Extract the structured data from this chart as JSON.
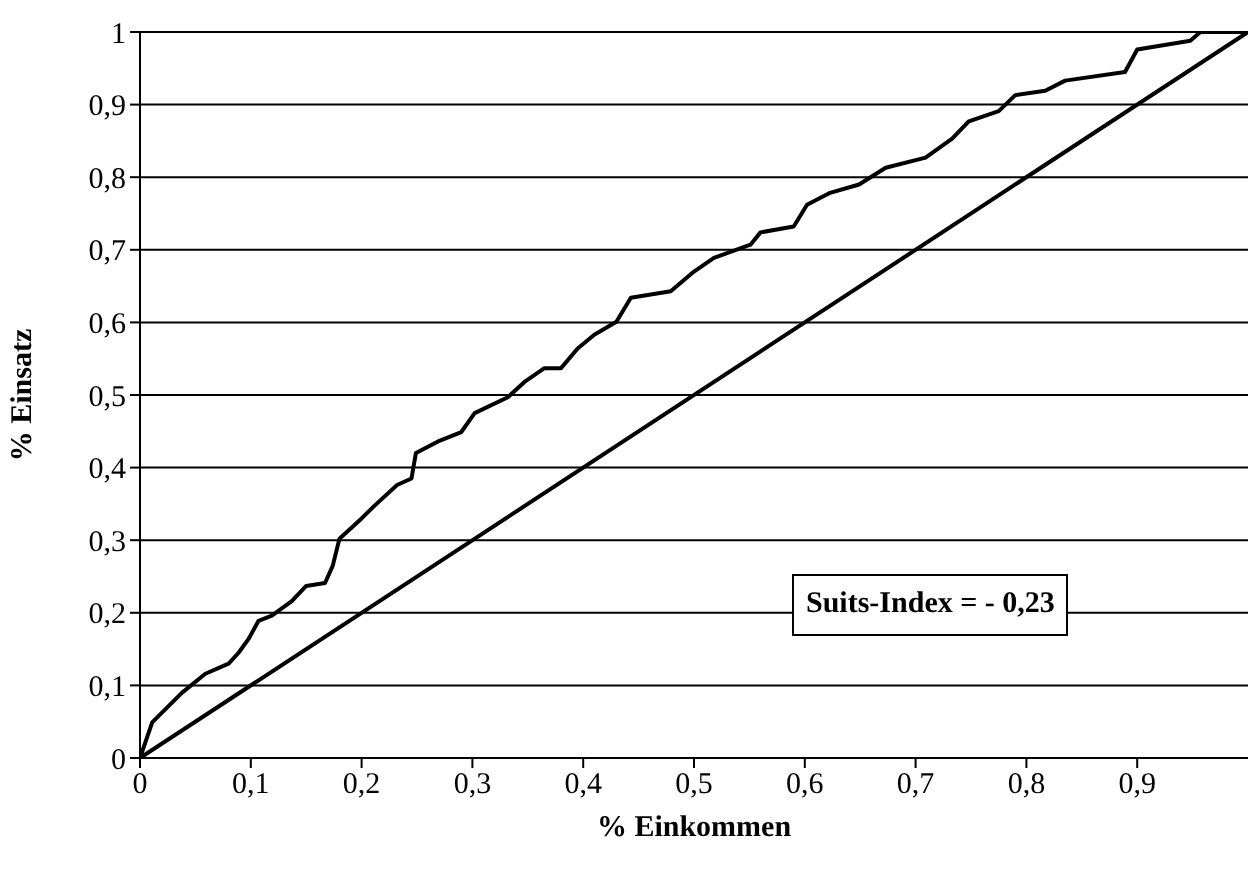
{
  "chart_data": {
    "type": "line",
    "xlabel": "% Einkommen",
    "ylabel": "% Einsatz",
    "xlim": [
      0,
      1
    ],
    "ylim": [
      0,
      1
    ],
    "xticks": [
      0,
      {
        "value": 0.1,
        "label": "0,1"
      },
      {
        "value": 0.2,
        "label": "0,2"
      },
      {
        "value": 0.3,
        "label": "0,3"
      },
      {
        "value": 0.4,
        "label": "0,4"
      },
      {
        "value": 0.5,
        "label": "0,5"
      },
      {
        "value": 0.6,
        "label": "0,6"
      },
      {
        "value": 0.7,
        "label": "0,7"
      },
      {
        "value": 0.8,
        "label": "0,8"
      },
      {
        "value": 0.9,
        "label": "0,9"
      }
    ],
    "yticks": [
      0,
      {
        "value": 0.1,
        "label": "0,1"
      },
      {
        "value": 0.2,
        "label": "0,2"
      },
      {
        "value": 0.3,
        "label": "0,3"
      },
      {
        "value": 0.4,
        "label": "0,4"
      },
      {
        "value": 0.5,
        "label": "0,5"
      },
      {
        "value": 0.6,
        "label": "0,6"
      },
      {
        "value": 0.7,
        "label": "0,7"
      },
      {
        "value": 0.8,
        "label": "0,8"
      },
      {
        "value": 0.9,
        "label": "0,9"
      },
      1
    ],
    "grid": "y",
    "marker": "none",
    "line_style": "solid",
    "annotations": [
      "Suits-Index = - 0,23"
    ],
    "series": [
      {
        "color": "#000000",
        "x": [
          0,
          0.011,
          0.038,
          0.059,
          0.08,
          0.089,
          0.098,
          0.107,
          0.119,
          0.137,
          0.15,
          0.167,
          0.174,
          0.18,
          0.2,
          0.212,
          0.232,
          0.245,
          0.249,
          0.269,
          0.29,
          0.302,
          0.332,
          0.347,
          0.365,
          0.38,
          0.395,
          0.41,
          0.43,
          0.443,
          0.479,
          0.5,
          0.518,
          0.551,
          0.56,
          0.59,
          0.602,
          0.622,
          0.649,
          0.673,
          0.709,
          0.733,
          0.748,
          0.775,
          0.79,
          0.817,
          0.835,
          0.889,
          0.9,
          0.948,
          0.957,
          0.995,
          1
        ],
        "values": [
          0,
          0.049,
          0.09,
          0.116,
          0.13,
          0.145,
          0.164,
          0.189,
          0.196,
          0.216,
          0.237,
          0.241,
          0.265,
          0.302,
          0.33,
          0.348,
          0.376,
          0.385,
          0.42,
          0.436,
          0.449,
          0.475,
          0.497,
          0.518,
          0.537,
          0.537,
          0.564,
          0.583,
          0.601,
          0.634,
          0.643,
          0.67,
          0.689,
          0.707,
          0.724,
          0.732,
          0.762,
          0.778,
          0.79,
          0.813,
          0.827,
          0.853,
          0.877,
          0.891,
          0.913,
          0.919,
          0.933,
          0.945,
          0.976,
          0.988,
          1,
          1,
          1
        ]
      },
      {
        "color": "#000000",
        "x": [
          0,
          1
        ],
        "values": [
          0,
          1
        ]
      }
    ]
  }
}
